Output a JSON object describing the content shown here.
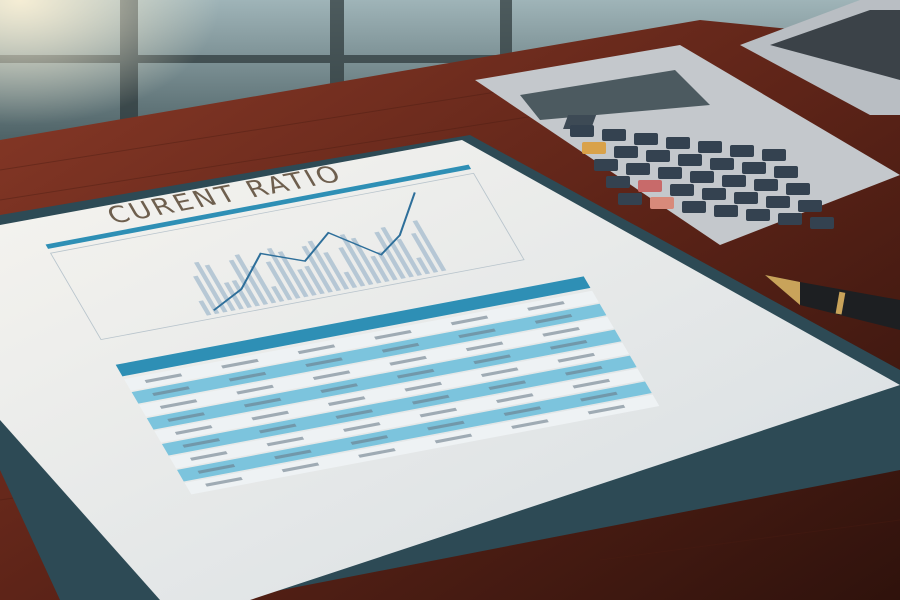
{
  "document": {
    "title": "CURENT RATIO"
  },
  "colors": {
    "desk": "#6b2a1c",
    "paper": "#e9ecee",
    "accent": "#2e8fb5",
    "calculator": "#c9ccd0"
  }
}
